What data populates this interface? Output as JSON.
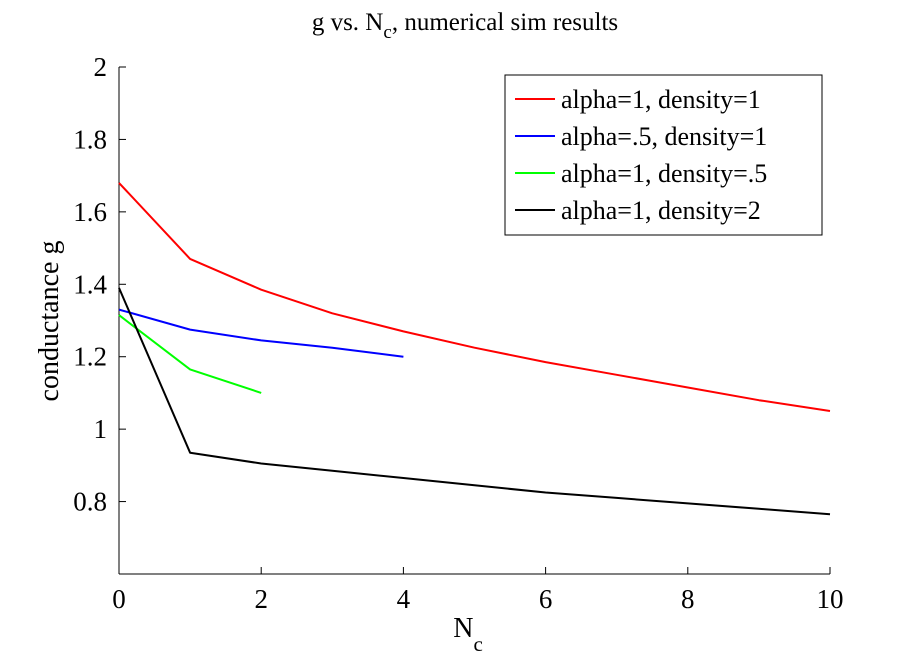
{
  "chart_data": {
    "type": "line",
    "title": "g vs. N",
    "title_subscript": "c",
    "title_suffix": ", numerical sim results",
    "xlabel": "N",
    "xlabel_subscript": "c",
    "ylabel": "conductance g",
    "xlim": [
      0,
      10
    ],
    "ylim": [
      0.6,
      2
    ],
    "xticks": [
      0,
      2,
      4,
      6,
      8,
      10
    ],
    "xtick_labels": [
      "0",
      "2",
      "4",
      "6",
      "8",
      "10"
    ],
    "yticks": [
      0.8,
      1,
      1.2,
      1.4,
      1.6,
      1.8,
      2
    ],
    "ytick_labels": [
      "0.8",
      "1",
      "1.2",
      "1.4",
      "1.6",
      "1.8",
      "2"
    ],
    "grid": false,
    "legend_position": "top-right",
    "series": [
      {
        "name": "alpha=1, density=1",
        "color": "#ff0000",
        "x": [
          0,
          1,
          2,
          3,
          4,
          5,
          6,
          7,
          8,
          9,
          10
        ],
        "y": [
          1.68,
          1.47,
          1.385,
          1.32,
          1.27,
          1.225,
          1.185,
          1.15,
          1.115,
          1.08,
          1.05
        ]
      },
      {
        "name": "alpha=.5, density=1",
        "color": "#0000ff",
        "x": [
          0,
          1,
          2,
          3,
          4
        ],
        "y": [
          1.33,
          1.275,
          1.245,
          1.225,
          1.2
        ]
      },
      {
        "name": "alpha=1, density=.5",
        "color": "#00ff00",
        "x": [
          0,
          1,
          2
        ],
        "y": [
          1.315,
          1.165,
          1.1
        ]
      },
      {
        "name": "alpha=1, density=2",
        "color": "#000000",
        "x": [
          0,
          1,
          2,
          3,
          4,
          5,
          6,
          7,
          8,
          9,
          10
        ],
        "y": [
          1.39,
          0.935,
          0.905,
          0.885,
          0.865,
          0.845,
          0.825,
          0.81,
          0.795,
          0.78,
          0.765
        ]
      }
    ]
  }
}
